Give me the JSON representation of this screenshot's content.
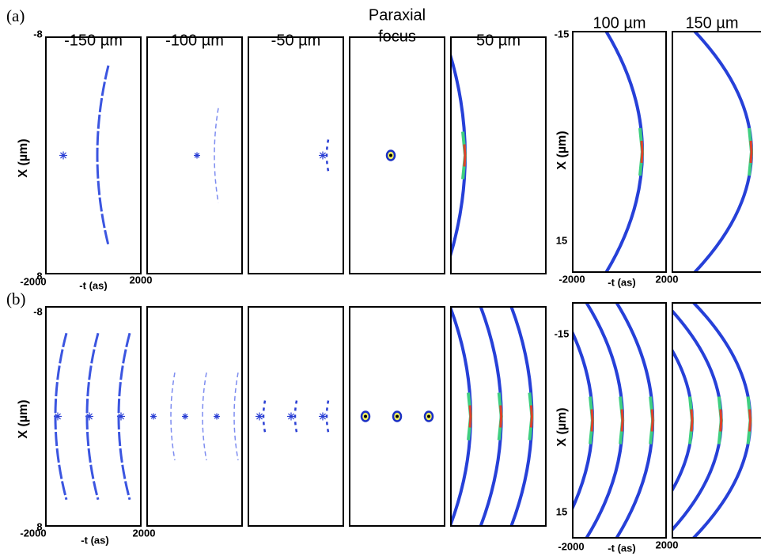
{
  "figure": {
    "panel_labels": [
      "(a)",
      "(b)"
    ],
    "column_titles": [
      [
        "-150 µm"
      ],
      [
        "-100 µm"
      ],
      [
        "-50 µm"
      ],
      [
        "Paraxial",
        "focus"
      ],
      [
        "50 µm"
      ],
      [
        "100 µm"
      ],
      [
        "150 µm"
      ]
    ],
    "axes": {
      "left": {
        "y_top": "-8",
        "y_bottom": "8",
        "y_label": "X (µm)",
        "x_left": "-2000",
        "x_label": "-t (as)",
        "x_right": "2000"
      },
      "right": {
        "y_top": "-15",
        "y_bottom": "15",
        "y_label": "X (µm)",
        "x_left": "-2000",
        "x_label": "-t (as)",
        "x_right": "2000"
      }
    }
  }
}
